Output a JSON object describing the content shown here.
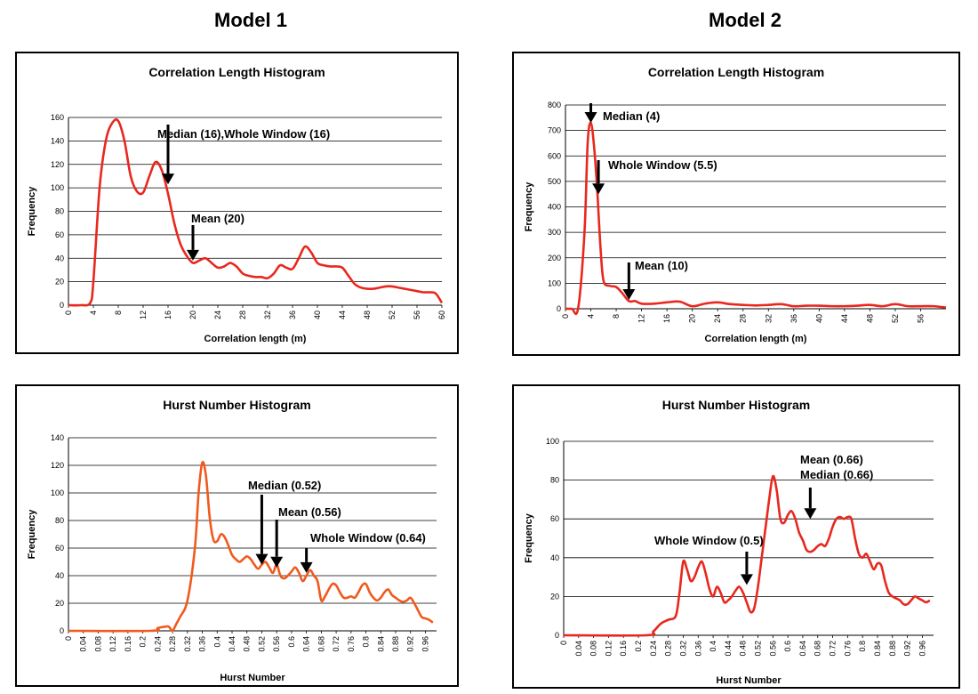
{
  "headers": {
    "model1": "Model 1",
    "model2": "Model 2"
  },
  "colors": {
    "line_red": "#e8281e",
    "line_orange": "#f05a1e",
    "grid": "#000000"
  },
  "chart_data": [
    {
      "id": "m1-corr",
      "type": "line",
      "title": "Correlation Length Histogram",
      "xlabel": "Correlation length (m)",
      "ylabel": "Frequency",
      "xlim": [
        0,
        60
      ],
      "ylim": [
        0,
        160
      ],
      "xticks": [
        0,
        4,
        8,
        12,
        16,
        20,
        24,
        28,
        32,
        36,
        40,
        44,
        48,
        52,
        56,
        60
      ],
      "yticks": [
        0,
        20,
        40,
        60,
        80,
        100,
        120,
        140,
        160
      ],
      "x_tick_labels_rotated": true,
      "grid": "horizontal",
      "series": [
        {
          "color": "#e8281e",
          "x": [
            0,
            2,
            3.5,
            4,
            5,
            6,
            7,
            8,
            9,
            10,
            11,
            12,
            13,
            14,
            15,
            16,
            17,
            18,
            19,
            20,
            21,
            22,
            23,
            24,
            25,
            26,
            27,
            28,
            29,
            30,
            31,
            32,
            33,
            34,
            35,
            36,
            37,
            38,
            39,
            40,
            41,
            42,
            43,
            44,
            45,
            46,
            47,
            48,
            49,
            50,
            51,
            52,
            53,
            54,
            55,
            56,
            57,
            58,
            59,
            60
          ],
          "y": [
            0,
            0,
            2,
            20,
            100,
            140,
            155,
            157,
            140,
            110,
            97,
            96,
            110,
            122,
            115,
            95,
            70,
            52,
            42,
            36,
            38,
            40,
            36,
            32,
            33,
            36,
            33,
            27,
            25,
            24,
            24,
            23,
            27,
            34,
            32,
            31,
            40,
            50,
            45,
            36,
            34,
            33,
            33,
            32,
            25,
            18,
            15,
            14,
            14,
            15,
            16,
            16,
            15,
            14,
            13,
            12,
            11,
            11,
            10,
            2
          ]
        }
      ],
      "annotations": [
        {
          "text": "Median (16),Whole Window (16)",
          "x": 16,
          "y": 103
        },
        {
          "text": "Mean (20)",
          "x": 20,
          "y": 38
        }
      ]
    },
    {
      "id": "m2-corr",
      "type": "line",
      "title": "Correlation Length Histogram",
      "xlabel": "Correlation length (m)",
      "ylabel": "Frequency",
      "xlim": [
        0,
        60
      ],
      "ylim": [
        0,
        800
      ],
      "xticks": [
        0,
        4,
        8,
        12,
        16,
        20,
        24,
        28,
        32,
        36,
        40,
        44,
        48,
        52,
        56
      ],
      "yticks": [
        0,
        100,
        200,
        300,
        400,
        500,
        600,
        700,
        800
      ],
      "x_tick_labels_rotated": true,
      "grid": "horizontal",
      "series": [
        {
          "color": "#e8281e",
          "x": [
            0,
            1,
            2,
            3,
            3.5,
            4,
            4.5,
            5,
            5.5,
            6,
            7,
            8,
            9,
            10,
            11,
            12,
            14,
            16,
            18,
            20,
            22,
            24,
            26,
            28,
            30,
            32,
            34,
            36,
            38,
            40,
            42,
            44,
            46,
            48,
            50,
            52,
            54,
            56,
            58,
            60
          ],
          "y": [
            0,
            0,
            2,
            300,
            650,
            730,
            640,
            470,
            250,
            110,
            90,
            85,
            60,
            30,
            30,
            20,
            20,
            25,
            28,
            10,
            20,
            25,
            18,
            15,
            13,
            15,
            18,
            10,
            12,
            12,
            10,
            10,
            12,
            15,
            10,
            18,
            10,
            10,
            10,
            5
          ]
        }
      ],
      "annotations": [
        {
          "text": "Median (4)",
          "x": 4,
          "y": 730
        },
        {
          "text": "Whole Window (5.5)",
          "x": 5.2,
          "y": 450
        },
        {
          "text": "Mean (10)",
          "x": 10,
          "y": 35
        }
      ]
    },
    {
      "id": "m1-hurst",
      "type": "line",
      "title": "Hurst Number Histogram",
      "xlabel": "Hurst Number",
      "ylabel": "Frequency",
      "xlim": [
        0,
        0.99
      ],
      "ylim": [
        0,
        140
      ],
      "xticks": [
        0,
        0.04,
        0.08,
        0.12,
        0.16,
        0.2,
        0.24,
        0.28,
        0.32,
        0.36,
        0.4,
        0.44,
        0.48,
        0.52,
        0.56,
        0.6,
        0.64,
        0.68,
        0.72,
        0.76,
        0.8,
        0.84,
        0.88,
        0.92,
        0.96
      ],
      "yticks": [
        0,
        20,
        40,
        60,
        80,
        100,
        120,
        140
      ],
      "x_tick_labels_rotated": true,
      "grid": "horizontal",
      "series": [
        {
          "color": "#f05a1e",
          "x": [
            0,
            0.22,
            0.24,
            0.26,
            0.27,
            0.28,
            0.29,
            0.3,
            0.32,
            0.34,
            0.35,
            0.36,
            0.37,
            0.38,
            0.39,
            0.4,
            0.41,
            0.42,
            0.43,
            0.44,
            0.45,
            0.46,
            0.47,
            0.48,
            0.49,
            0.5,
            0.51,
            0.52,
            0.53,
            0.54,
            0.55,
            0.56,
            0.57,
            0.58,
            0.59,
            0.6,
            0.61,
            0.62,
            0.63,
            0.64,
            0.65,
            0.66,
            0.67,
            0.68,
            0.69,
            0.7,
            0.71,
            0.72,
            0.73,
            0.74,
            0.75,
            0.76,
            0.77,
            0.78,
            0.79,
            0.8,
            0.81,
            0.82,
            0.83,
            0.84,
            0.85,
            0.86,
            0.87,
            0.88,
            0.89,
            0.9,
            0.91,
            0.92,
            0.93,
            0.94,
            0.95,
            0.96,
            0.97,
            0.98
          ],
          "y": [
            0,
            0,
            2,
            3,
            3,
            0,
            5,
            10,
            22,
            60,
            100,
            122,
            112,
            82,
            66,
            65,
            70,
            68,
            62,
            55,
            52,
            50,
            52,
            54,
            52,
            48,
            45,
            48,
            50,
            46,
            42,
            48,
            40,
            38,
            40,
            43,
            46,
            42,
            36,
            40,
            44,
            40,
            36,
            22,
            25,
            30,
            34,
            33,
            28,
            24,
            24,
            25,
            24,
            28,
            33,
            34,
            28,
            24,
            22,
            24,
            28,
            30,
            26,
            24,
            22,
            21,
            22,
            24,
            20,
            15,
            10,
            9,
            8,
            6
          ]
        }
      ],
      "annotations": [
        {
          "text": "Median (0.52)",
          "x": 0.52,
          "y": 48
        },
        {
          "text": "Mean (0.56)",
          "x": 0.56,
          "y": 46
        },
        {
          "text": "Whole Window (0.64)",
          "x": 0.64,
          "y": 42
        }
      ]
    },
    {
      "id": "m2-hurst",
      "type": "line",
      "title": "Hurst Number Histogram",
      "xlabel": "Hurst Number",
      "ylabel": "Frequency",
      "xlim": [
        0,
        0.99
      ],
      "ylim": [
        0,
        100
      ],
      "xticks": [
        0,
        0.04,
        0.08,
        0.12,
        0.16,
        0.2,
        0.24,
        0.28,
        0.32,
        0.36,
        0.4,
        0.44,
        0.48,
        0.52,
        0.56,
        0.6,
        0.64,
        0.68,
        0.72,
        0.76,
        0.8,
        0.84,
        0.88,
        0.92,
        0.96
      ],
      "yticks": [
        0,
        20,
        40,
        60,
        80,
        100
      ],
      "x_tick_labels_rotated": true,
      "grid": "horizontal",
      "series": [
        {
          "color": "#e8281e",
          "x": [
            0,
            0.22,
            0.24,
            0.26,
            0.28,
            0.3,
            0.31,
            0.32,
            0.33,
            0.34,
            0.35,
            0.36,
            0.37,
            0.38,
            0.39,
            0.4,
            0.41,
            0.42,
            0.43,
            0.44,
            0.45,
            0.46,
            0.47,
            0.48,
            0.49,
            0.5,
            0.51,
            0.52,
            0.53,
            0.54,
            0.55,
            0.56,
            0.57,
            0.58,
            0.59,
            0.6,
            0.61,
            0.62,
            0.63,
            0.64,
            0.65,
            0.66,
            0.67,
            0.68,
            0.69,
            0.7,
            0.71,
            0.72,
            0.73,
            0.74,
            0.75,
            0.76,
            0.77,
            0.78,
            0.79,
            0.8,
            0.81,
            0.82,
            0.83,
            0.84,
            0.85,
            0.86,
            0.87,
            0.88,
            0.89,
            0.9,
            0.91,
            0.92,
            0.93,
            0.94,
            0.95,
            0.96,
            0.97,
            0.98
          ],
          "y": [
            0,
            0,
            2,
            6,
            8,
            10,
            22,
            38,
            34,
            28,
            30,
            35,
            38,
            32,
            24,
            20,
            25,
            22,
            17,
            18,
            20,
            23,
            25,
            22,
            17,
            12,
            14,
            25,
            40,
            55,
            70,
            82,
            75,
            60,
            58,
            62,
            64,
            60,
            53,
            49,
            44,
            43,
            44,
            46,
            47,
            46,
            50,
            56,
            60,
            61,
            60,
            61,
            60,
            50,
            42,
            40,
            42,
            38,
            34,
            37,
            36,
            28,
            22,
            20,
            19,
            18,
            16,
            16,
            18,
            20,
            19,
            18,
            17,
            18
          ]
        }
      ],
      "annotations": [
        {
          "text": "Mean (0.66)",
          "x": 0.66,
          "y": 60
        },
        {
          "text": "Median (0.66)",
          "x": 0.66,
          "y": 60
        },
        {
          "text": "Whole Window (0.5)",
          "x": 0.49,
          "y": 26
        }
      ]
    }
  ]
}
